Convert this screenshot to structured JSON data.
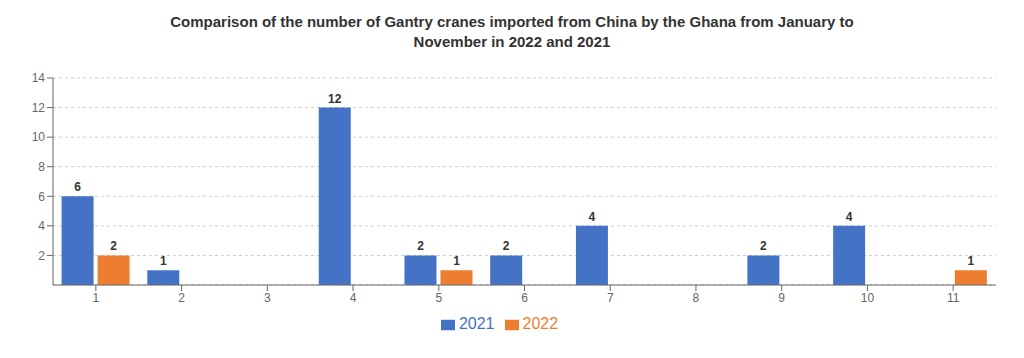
{
  "chart_data": {
    "type": "bar",
    "title": "Comparison of the number of Gantry cranes imported from China by the Ghana from January to\nNovember in 2022 and 2021",
    "categories": [
      "1",
      "2",
      "3",
      "4",
      "5",
      "6",
      "7",
      "8",
      "9",
      "10",
      "11"
    ],
    "series": [
      {
        "name": "2021",
        "color": "#4472C4",
        "values": [
          6,
          1,
          0,
          12,
          2,
          2,
          4,
          0,
          2,
          4,
          0
        ]
      },
      {
        "name": "2022",
        "color": "#ED7D31",
        "values": [
          2,
          0,
          0,
          0,
          1,
          0,
          0,
          0,
          0,
          0,
          1
        ]
      }
    ],
    "ylim": [
      0,
      14
    ],
    "yticks": [
      2,
      4,
      6,
      8,
      10,
      12,
      14
    ],
    "grid": true,
    "legend": "bottom",
    "data_labels": true
  }
}
